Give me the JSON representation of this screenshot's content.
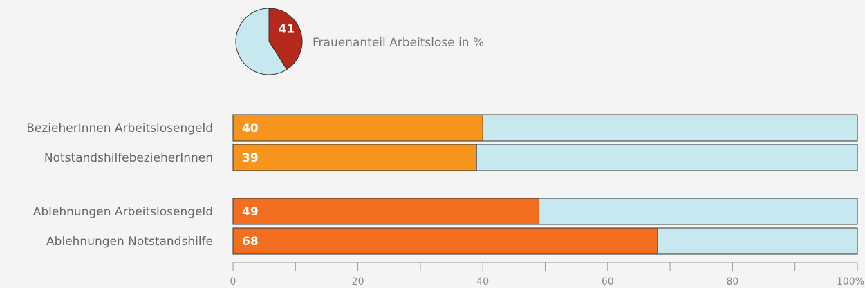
{
  "chart_data": [
    {
      "type": "pie",
      "title": "Frauenanteil Arbeitslose in %",
      "values": [
        41,
        59
      ],
      "colors": [
        "#b5291c",
        "#c8e8f0"
      ],
      "labeled": [
        true,
        false
      ]
    },
    {
      "type": "hbar",
      "categories": [
        "BezieherInnen Arbeitslosengeld",
        "NotstandshilfebezieherInnen",
        "Ablehnungen Arbeitslosengeld",
        "Ablehnungen Notstandshilfe"
      ],
      "values": [
        40,
        39,
        49,
        68
      ],
      "colors": [
        "#f7941d",
        "#f7941d",
        "#f26f21",
        "#f26f21"
      ],
      "background_color": "#c8e8f0",
      "xlim": [
        0,
        100
      ],
      "xticks": [
        0,
        20,
        40,
        60,
        80,
        {
          "value": 100,
          "label": "100%"
        }
      ],
      "xminorticks": [
        10,
        30,
        50,
        70,
        90
      ]
    }
  ]
}
